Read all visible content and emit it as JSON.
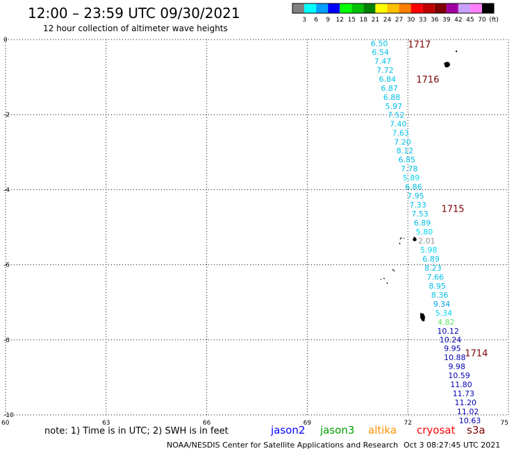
{
  "header": {
    "title": "12:00 – 23:59 UTC 09/30/2021",
    "subtitle": "12 hour collection of altimeter wave heights"
  },
  "colorbar": {
    "colors": [
      "#808080",
      "#00ffff",
      "#00a0ff",
      "#0000ff",
      "#00ff00",
      "#00c000",
      "#008000",
      "#ffff00",
      "#ffc000",
      "#ff8000",
      "#ff0000",
      "#c00000",
      "#800000",
      "#a000a0",
      "#c8a0ff",
      "#ff80ff",
      "#000000"
    ],
    "labels": [
      "3",
      "6",
      "9",
      "12",
      "15",
      "18",
      "21",
      "24",
      "27",
      "30",
      "33",
      "36",
      "39",
      "42",
      "45",
      "70",
      "(ft)"
    ]
  },
  "chart_data": {
    "type": "scatter",
    "xlim": [
      60,
      75
    ],
    "ylim": [
      -10,
      0
    ],
    "xticks": [
      "60",
      "63",
      "66",
      "69",
      "72",
      "75"
    ],
    "yticks": [
      "0",
      "-2",
      "-4",
      "-6",
      "-8",
      "-10"
    ],
    "grid": true,
    "points": [
      {
        "x": 71.15,
        "y": -0.1,
        "label": "6.50",
        "color": "#00bfe6"
      },
      {
        "x": 71.18,
        "y": -0.33,
        "label": "6.54",
        "color": "#00bfe6"
      },
      {
        "x": 71.25,
        "y": -0.57,
        "label": "7.47",
        "color": "#00bfe6"
      },
      {
        "x": 71.32,
        "y": -0.81,
        "label": "7.72",
        "color": "#00bfe6"
      },
      {
        "x": 71.39,
        "y": -1.05,
        "label": "6.84",
        "color": "#00bfe6"
      },
      {
        "x": 71.45,
        "y": -1.29,
        "label": "6.87",
        "color": "#00bfe6"
      },
      {
        "x": 71.52,
        "y": -1.53,
        "label": "6.88",
        "color": "#00bfe6"
      },
      {
        "x": 71.58,
        "y": -1.77,
        "label": "5.97",
        "color": "#00bfe6"
      },
      {
        "x": 71.65,
        "y": -2.01,
        "label": "7.52",
        "color": "#00bfe6"
      },
      {
        "x": 71.71,
        "y": -2.25,
        "label": "7.40",
        "color": "#00bfe6"
      },
      {
        "x": 71.78,
        "y": -2.49,
        "label": "7.63",
        "color": "#00bfe6"
      },
      {
        "x": 71.84,
        "y": -2.73,
        "label": "7.20",
        "color": "#00bfe6"
      },
      {
        "x": 71.91,
        "y": -2.96,
        "label": "8.12",
        "color": "#00bfe6"
      },
      {
        "x": 71.97,
        "y": -3.2,
        "label": "6.85",
        "color": "#00bfe6"
      },
      {
        "x": 72.04,
        "y": -3.44,
        "label": "7.78",
        "color": "#00bfe6"
      },
      {
        "x": 72.1,
        "y": -3.68,
        "label": "5.89",
        "color": "#00d8f0"
      },
      {
        "x": 72.17,
        "y": -3.92,
        "label": "6.86",
        "color": "#00bfe6"
      },
      {
        "x": 72.23,
        "y": -4.16,
        "label": "7.95",
        "color": "#00bfe6"
      },
      {
        "x": 72.3,
        "y": -4.4,
        "label": "7.33",
        "color": "#00bfe6"
      },
      {
        "x": 72.36,
        "y": -4.64,
        "label": "7.53",
        "color": "#00bfe6"
      },
      {
        "x": 72.43,
        "y": -4.88,
        "label": "6.89",
        "color": "#00bfe6"
      },
      {
        "x": 72.49,
        "y": -5.12,
        "label": "5.80",
        "color": "#00d8f0"
      },
      {
        "x": 72.56,
        "y": -5.36,
        "label": "2.01",
        "color": "#909090"
      },
      {
        "x": 72.62,
        "y": -5.6,
        "label": "5.98",
        "color": "#00d8f0"
      },
      {
        "x": 72.69,
        "y": -5.84,
        "label": "6.89",
        "color": "#00bfe6"
      },
      {
        "x": 72.75,
        "y": -6.08,
        "label": "8.23",
        "color": "#00bfe6"
      },
      {
        "x": 72.82,
        "y": -6.32,
        "label": "7.66",
        "color": "#00bfe6"
      },
      {
        "x": 72.88,
        "y": -6.56,
        "label": "8.95",
        "color": "#00bfe6"
      },
      {
        "x": 72.95,
        "y": -6.8,
        "label": "8.36",
        "color": "#00bfe6"
      },
      {
        "x": 73.01,
        "y": -7.04,
        "label": "9.34",
        "color": "#00a0e0"
      },
      {
        "x": 73.07,
        "y": -7.28,
        "label": "5.34",
        "color": "#00d8f0"
      },
      {
        "x": 73.14,
        "y": -7.52,
        "label": "4.82",
        "color": "#60e060"
      },
      {
        "x": 73.2,
        "y": -7.76,
        "label": "10.12",
        "color": "#0000b0"
      },
      {
        "x": 73.27,
        "y": -7.99,
        "label": "10.24",
        "color": "#0000b0"
      },
      {
        "x": 73.33,
        "y": -8.23,
        "label": "9.95",
        "color": "#0000b0"
      },
      {
        "x": 73.4,
        "y": -8.47,
        "label": "10.88",
        "color": "#0000b0"
      },
      {
        "x": 73.46,
        "y": -8.71,
        "label": "9.98",
        "color": "#0000b0"
      },
      {
        "x": 73.53,
        "y": -8.95,
        "label": "10.59",
        "color": "#0000b0"
      },
      {
        "x": 73.59,
        "y": -9.19,
        "label": "11.80",
        "color": "#0000b0"
      },
      {
        "x": 73.66,
        "y": -9.43,
        "label": "11.73",
        "color": "#0000b0"
      },
      {
        "x": 73.72,
        "y": -9.67,
        "label": "11.20",
        "color": "#0000b0"
      },
      {
        "x": 73.79,
        "y": -9.91,
        "label": "11.02",
        "color": "#0000b0"
      },
      {
        "x": 73.85,
        "y": -10.15,
        "label": "10.63",
        "color": "#0000b0"
      }
    ],
    "pass_times": [
      {
        "x": 72.0,
        "y": -0.12,
        "label": "1717"
      },
      {
        "x": 72.25,
        "y": -1.05,
        "label": "1716"
      },
      {
        "x": 73.0,
        "y": -4.5,
        "label": "1715"
      },
      {
        "x": 73.7,
        "y": -8.35,
        "label": "1714"
      }
    ]
  },
  "footer": {
    "note": "note:  1) Time is in UTC;  2) SWH is in feet",
    "satellites": [
      {
        "name": "jason2",
        "color": "#0000ff"
      },
      {
        "name": "jason3",
        "color": "#00a000"
      },
      {
        "name": "altika",
        "color": "#ff9000"
      },
      {
        "name": "cryosat",
        "color": "#ff0000"
      },
      {
        "name": "s3a",
        "color": "#7a0000"
      }
    ],
    "credit": "NOAA/NESDIS Center for Satellite Applications and Research",
    "timestamp": "Oct  3 08:27:45 UTC 2021"
  }
}
